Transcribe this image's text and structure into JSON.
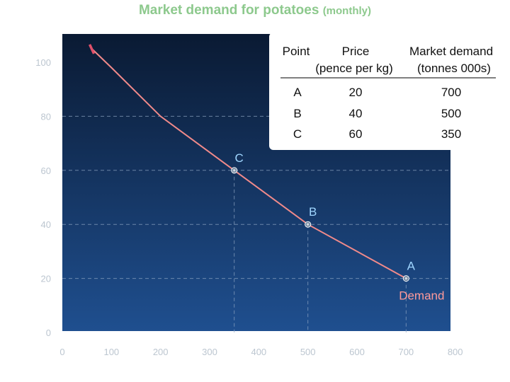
{
  "title": {
    "main": "Market demand for potatoes",
    "sub": "(monthly)"
  },
  "colors": {
    "title": "#8dc98d",
    "curve": "#f08a8a",
    "plot_bg_top": "#0a1a33",
    "plot_bg_bottom": "#1f4f8f",
    "grid": "#8fa6c4",
    "point_label": "#9fd6ff",
    "demand_label": "#ff9a9a",
    "table_bg": "#ffffff",
    "table_text": "#111111"
  },
  "table": {
    "headers": [
      "Point",
      "Price",
      "Market demand"
    ],
    "subheaders": [
      "(pence per kg)",
      "(tonnes 000s)"
    ],
    "rows": [
      [
        "A",
        "20",
        "700"
      ],
      [
        "B",
        "40",
        "500"
      ],
      [
        "C",
        "60",
        "350"
      ]
    ]
  },
  "chart_data": {
    "type": "line",
    "xlim": [
      0,
      900
    ],
    "ylim": [
      0,
      100
    ],
    "x_ticks": [
      0,
      100,
      200,
      300,
      400,
      500,
      600,
      700,
      800
    ],
    "y_ticks": [
      0,
      20,
      40,
      60,
      80,
      100
    ],
    "series": [
      {
        "name": "Demand",
        "points": [
          {
            "x": 60,
            "y": 105
          },
          {
            "x": 100,
            "y": 98
          },
          {
            "x": 200,
            "y": 80
          },
          {
            "x": 350,
            "y": 60
          },
          {
            "x": 500,
            "y": 40
          },
          {
            "x": 700,
            "y": 20
          }
        ]
      }
    ],
    "labeled_points": [
      {
        "label": "A",
        "x": 700,
        "y": 20
      },
      {
        "label": "B",
        "x": 500,
        "y": 40
      },
      {
        "label": "C",
        "x": 350,
        "y": 60
      }
    ],
    "curve_label": "Demand",
    "grid": "dashed guides to labeled points"
  }
}
